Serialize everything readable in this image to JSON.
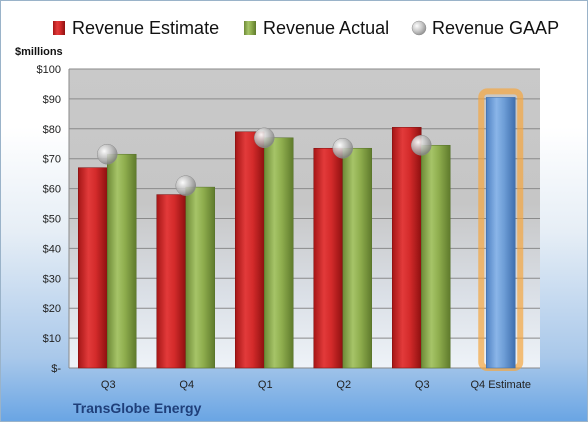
{
  "chart_data": {
    "type": "bar",
    "unit_label": "$millions",
    "company": "TransGlobe Energy",
    "categories": [
      "Q3",
      "Q4",
      "Q1",
      "Q2",
      "Q3",
      "Q4 Estimate"
    ],
    "series": [
      {
        "name": "Revenue Estimate",
        "type": "bar",
        "color": "#d42b2b",
        "values": [
          67,
          58,
          79,
          73.5,
          80.5,
          null
        ]
      },
      {
        "name": "Revenue Actual",
        "type": "bar",
        "color": "#8fae4e",
        "values": [
          71.5,
          60.5,
          77,
          73.5,
          74.5,
          null
        ]
      },
      {
        "name": "Revenue GAAP",
        "type": "marker",
        "color": "#c0c0c0",
        "values": [
          71.5,
          61,
          77,
          73.5,
          74.5,
          null
        ]
      },
      {
        "name": "",
        "type": "bar",
        "color": "#6f9fd8",
        "highlight": "#f5a640",
        "values": [
          null,
          null,
          null,
          null,
          null,
          90.5
        ]
      }
    ],
    "y_ticks": [
      "$-",
      "$10",
      "$20",
      "$30",
      "$40",
      "$50",
      "$60",
      "$70",
      "$80",
      "$90",
      "$100"
    ],
    "ylim": [
      0,
      100
    ],
    "grid": true,
    "legend_position": "top"
  }
}
